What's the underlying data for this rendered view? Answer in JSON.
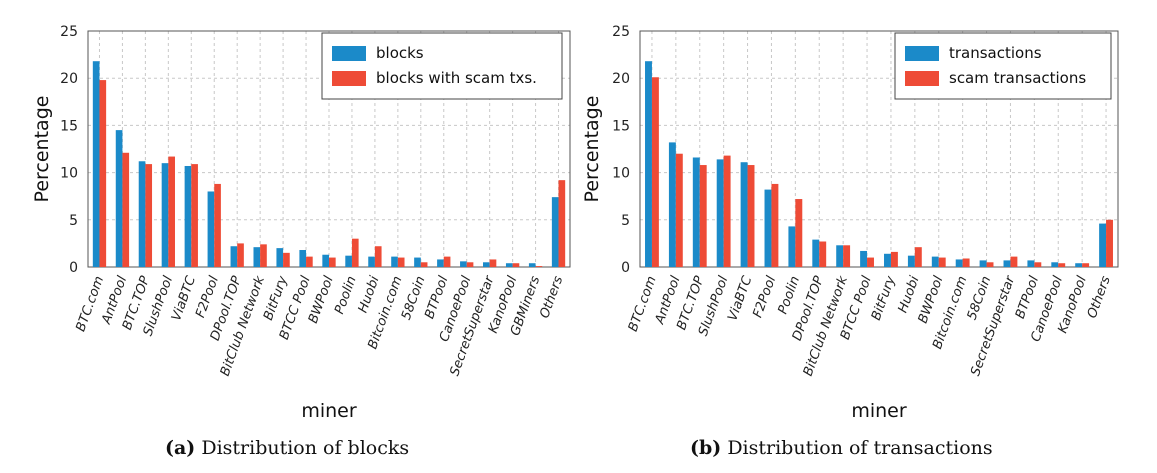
{
  "colors": {
    "primary": "#1b8ac9",
    "secondary": "#ee4b36",
    "grid": "#c8c8c8"
  },
  "captions": [
    {
      "label": "(a)",
      "text": "Distribution of blocks"
    },
    {
      "label": "(b)",
      "text": "Distribution of transactions"
    }
  ],
  "chart_data": [
    {
      "type": "bar",
      "xlabel": "miner",
      "ylabel": "Percentage",
      "ylim": [
        0,
        25
      ],
      "yticks": [
        0,
        5,
        10,
        15,
        20,
        25
      ],
      "grid": true,
      "legend_position": "top-right",
      "categories": [
        "BTC.com",
        "AntPool",
        "BTC.TOP",
        "SlushPool",
        "ViaBTC",
        "F2Pool",
        "DPool.TOP",
        "BitClub Network",
        "BitFury",
        "BTCC Pool",
        "BWPool",
        "Poolin",
        "Huobi",
        "Bitcoin.com",
        "58Coin",
        "BTPool",
        "CanoePool",
        "SecretSuperstar",
        "KanoPool",
        "GBMiners",
        "Others"
      ],
      "series": [
        {
          "name": "blocks",
          "values": [
            21.8,
            14.5,
            11.2,
            11.0,
            10.7,
            8.0,
            2.2,
            2.1,
            2.0,
            1.8,
            1.3,
            1.2,
            1.1,
            1.1,
            1.0,
            0.8,
            0.6,
            0.5,
            0.4,
            0.4,
            7.4
          ]
        },
        {
          "name": "blocks with scam txs.",
          "values": [
            19.8,
            12.1,
            10.9,
            11.7,
            10.9,
            8.8,
            2.5,
            2.4,
            1.5,
            1.1,
            1.0,
            3.0,
            2.2,
            1.0,
            0.5,
            1.1,
            0.5,
            0.8,
            0.4,
            0.1,
            9.2
          ]
        }
      ]
    },
    {
      "type": "bar",
      "xlabel": "miner",
      "ylabel": "Percentage",
      "ylim": [
        0,
        25
      ],
      "yticks": [
        0,
        5,
        10,
        15,
        20,
        25
      ],
      "grid": true,
      "legend_position": "top-right",
      "categories": [
        "BTC.com",
        "AntPool",
        "BTC.TOP",
        "SlushPool",
        "ViaBTC",
        "F2Pool",
        "Poolin",
        "DPool.TOP",
        "BitClub Network",
        "BTCC Pool",
        "BitFury",
        "Huobi",
        "BWPool",
        "Bitcoin.com",
        "58Coin",
        "SecretSuperstar",
        "BTPool",
        "CanoePool",
        "KanoPool",
        "Others"
      ],
      "series": [
        {
          "name": "transactions",
          "values": [
            21.8,
            13.2,
            11.6,
            11.4,
            11.1,
            8.2,
            4.3,
            2.9,
            2.3,
            1.7,
            1.4,
            1.2,
            1.1,
            0.8,
            0.7,
            0.7,
            0.7,
            0.5,
            0.4,
            4.6
          ]
        },
        {
          "name": "scam transactions",
          "values": [
            20.1,
            12.0,
            10.8,
            11.8,
            10.8,
            8.8,
            7.2,
            2.7,
            2.3,
            1.0,
            1.6,
            2.1,
            1.0,
            0.9,
            0.5,
            1.1,
            0.5,
            0.4,
            0.4,
            5.0
          ]
        }
      ]
    }
  ]
}
